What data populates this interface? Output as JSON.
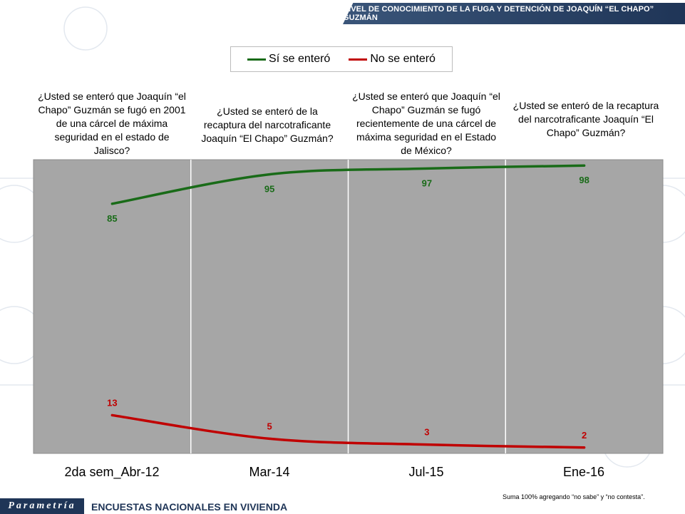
{
  "header": {
    "title": "NIVEL DE CONOCIMIENTO DE LA FUGA Y DETENCIÓN DE JOAQUÍN “EL CHAPO” GUZMÁN"
  },
  "colors": {
    "green": "#196b18",
    "red": "#c00000",
    "plot_bg": "#a6a6a6",
    "brand": "#1f3557"
  },
  "questions": [
    "¿Usted se enteró que Joaquín “el Chapo” Guzmán se fugó en 2001 de una cárcel de máxima seguridad en el estado de Jalisco?",
    "¿Usted se enteró de la recaptura del narcotraficante Joaquín “El Chapo” Guzmán?",
    "¿Usted se enteró que Joaquín “el Chapo” Guzmán se fugó recientemente de una cárcel de máxima seguridad en el Estado de México?",
    "¿Usted se enteró de la recaptura del narcotraficante Joaquín “El Chapo” Guzmán?"
  ],
  "chart_data": {
    "type": "line",
    "categories": [
      "2da sem_Abr-12",
      "Mar-14",
      "Jul-15",
      "Ene-16"
    ],
    "series": [
      {
        "name": "Sí se enteró",
        "color": "#196b18",
        "values": [
          85,
          95,
          97,
          98
        ]
      },
      {
        "name": "No se enteró",
        "color": "#c00000",
        "values": [
          13,
          5,
          3,
          2
        ]
      }
    ],
    "ylim": [
      0,
      100
    ],
    "grid": false,
    "legend_position": "top"
  },
  "footer": {
    "logo": "Parametría",
    "text": "ENCUESTAS NACIONALES EN VIVIENDA",
    "note": "Suma 100% agregando “no sabe” y “no contesta”."
  }
}
